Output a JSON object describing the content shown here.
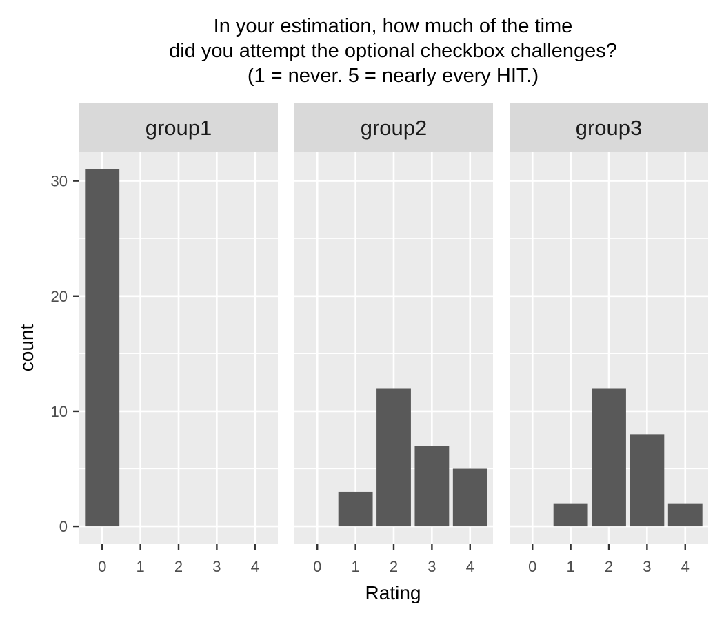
{
  "chart_data": {
    "type": "bar",
    "title": "In your estimation, how much of the time did you attempt the optional checkbox challenges? (1 = never. 5 = nearly every HIT.)",
    "title_lines": [
      "In your estimation, how much of the time",
      "did you attempt the optional checkbox challenges?",
      "(1 = never. 5 = nearly every HIT.)"
    ],
    "xlabel": "Rating",
    "ylabel": "count",
    "categories": [
      0,
      1,
      2,
      3,
      4
    ],
    "x_ticks": [
      "0",
      "1",
      "2",
      "3",
      "4"
    ],
    "y_ticks": [
      0,
      10,
      20,
      30
    ],
    "ylim": [
      -1.55,
      32.55
    ],
    "xlim": [
      -0.6,
      4.6
    ],
    "grid": true,
    "legend": "none",
    "facets": [
      {
        "name": "group1",
        "values": [
          31,
          0,
          0,
          0,
          0
        ]
      },
      {
        "name": "group2",
        "values": [
          0,
          3,
          12,
          7,
          5
        ]
      },
      {
        "name": "group3",
        "values": [
          0,
          2,
          12,
          8,
          2
        ]
      }
    ],
    "colors": {
      "bar": "#595959",
      "panel": "#ebebeb",
      "strip": "#d9d9d9",
      "grid": "#ffffff",
      "tick": "#333333"
    }
  }
}
